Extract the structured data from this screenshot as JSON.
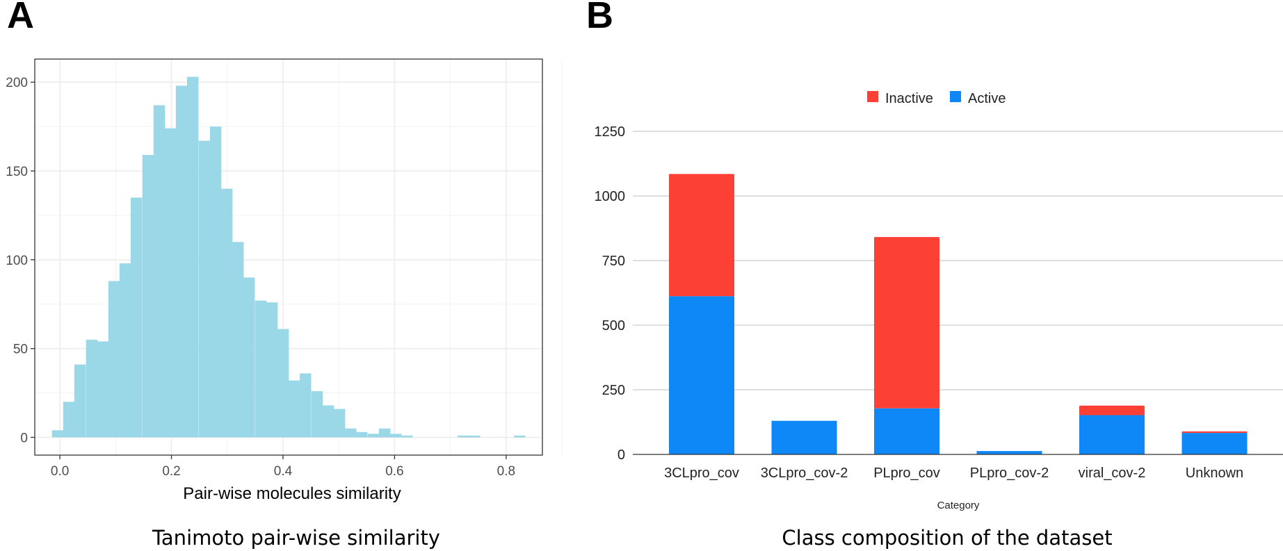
{
  "panels": {
    "a_letter": "A",
    "b_letter": "B"
  },
  "captions": {
    "a": "Tanimoto pair-wise similarity",
    "b": "Class composition of the dataset"
  },
  "colors": {
    "histogram_fill": "#9ad8e7",
    "inactive": "#fd4036",
    "active": "#0f88f7",
    "grid_a": "#ebebeb",
    "grid_b": "#cccccc"
  },
  "chart_data": [
    {
      "type": "bar",
      "subtype": "histogram",
      "title": "",
      "xlabel": "Pair-wise molecules similarity",
      "ylabel": "",
      "xlim": [
        -0.045,
        0.865
      ],
      "ylim": [
        -10,
        213
      ],
      "bin_width": 0.0202,
      "x_ticks": [
        {
          "value": 0.0,
          "label": "0.0"
        },
        {
          "value": 0.2,
          "label": "0.2"
        },
        {
          "value": 0.4,
          "label": "0.4"
        },
        {
          "value": 0.6,
          "label": "0.6"
        },
        {
          "value": 0.8,
          "label": "0.8"
        }
      ],
      "y_ticks": [
        {
          "value": 0,
          "label": "0"
        },
        {
          "value": 50,
          "label": "50"
        },
        {
          "value": 100,
          "label": "100"
        },
        {
          "value": 150,
          "label": "150"
        },
        {
          "value": 200,
          "label": "200"
        }
      ],
      "bins": [
        {
          "x": -0.004,
          "count": 4
        },
        {
          "x": 0.016,
          "count": 20
        },
        {
          "x": 0.036,
          "count": 41
        },
        {
          "x": 0.057,
          "count": 55
        },
        {
          "x": 0.077,
          "count": 54
        },
        {
          "x": 0.097,
          "count": 88
        },
        {
          "x": 0.117,
          "count": 98
        },
        {
          "x": 0.137,
          "count": 135
        },
        {
          "x": 0.158,
          "count": 159
        },
        {
          "x": 0.178,
          "count": 187
        },
        {
          "x": 0.198,
          "count": 174
        },
        {
          "x": 0.218,
          "count": 198
        },
        {
          "x": 0.238,
          "count": 203
        },
        {
          "x": 0.259,
          "count": 167
        },
        {
          "x": 0.279,
          "count": 175
        },
        {
          "x": 0.299,
          "count": 140
        },
        {
          "x": 0.319,
          "count": 110
        },
        {
          "x": 0.339,
          "count": 90
        },
        {
          "x": 0.36,
          "count": 77
        },
        {
          "x": 0.38,
          "count": 76
        },
        {
          "x": 0.4,
          "count": 61
        },
        {
          "x": 0.42,
          "count": 32
        },
        {
          "x": 0.44,
          "count": 36
        },
        {
          "x": 0.461,
          "count": 26
        },
        {
          "x": 0.481,
          "count": 18
        },
        {
          "x": 0.501,
          "count": 16
        },
        {
          "x": 0.521,
          "count": 5
        },
        {
          "x": 0.541,
          "count": 3
        },
        {
          "x": 0.562,
          "count": 2
        },
        {
          "x": 0.582,
          "count": 5
        },
        {
          "x": 0.602,
          "count": 2
        },
        {
          "x": 0.622,
          "count": 1
        },
        {
          "x": 0.723,
          "count": 1
        },
        {
          "x": 0.743,
          "count": 1
        },
        {
          "x": 0.824,
          "count": 1
        }
      ]
    },
    {
      "type": "bar",
      "subtype": "stacked",
      "title": "",
      "xlabel": "Category",
      "ylabel": "",
      "ylim": [
        0,
        1250
      ],
      "legend_position": "top",
      "categories": [
        "3CLpro_cov",
        "3CLpro_cov-2",
        "PLpro_cov",
        "PLpro_cov-2",
        "viral_cov-2",
        "Unknown"
      ],
      "series": [
        {
          "name": "Active",
          "values": [
            612,
            130,
            178,
            13,
            152,
            83
          ]
        },
        {
          "name": "Inactive",
          "values": [
            473,
            0,
            663,
            0,
            37,
            6
          ]
        }
      ],
      "legend_order": [
        "Inactive",
        "Active"
      ],
      "y_ticks": [
        {
          "value": 0,
          "label": "0"
        },
        {
          "value": 250,
          "label": "250"
        },
        {
          "value": 500,
          "label": "500"
        },
        {
          "value": 750,
          "label": "750"
        },
        {
          "value": 1000,
          "label": "1000"
        },
        {
          "value": 1250,
          "label": "1250"
        }
      ]
    }
  ]
}
